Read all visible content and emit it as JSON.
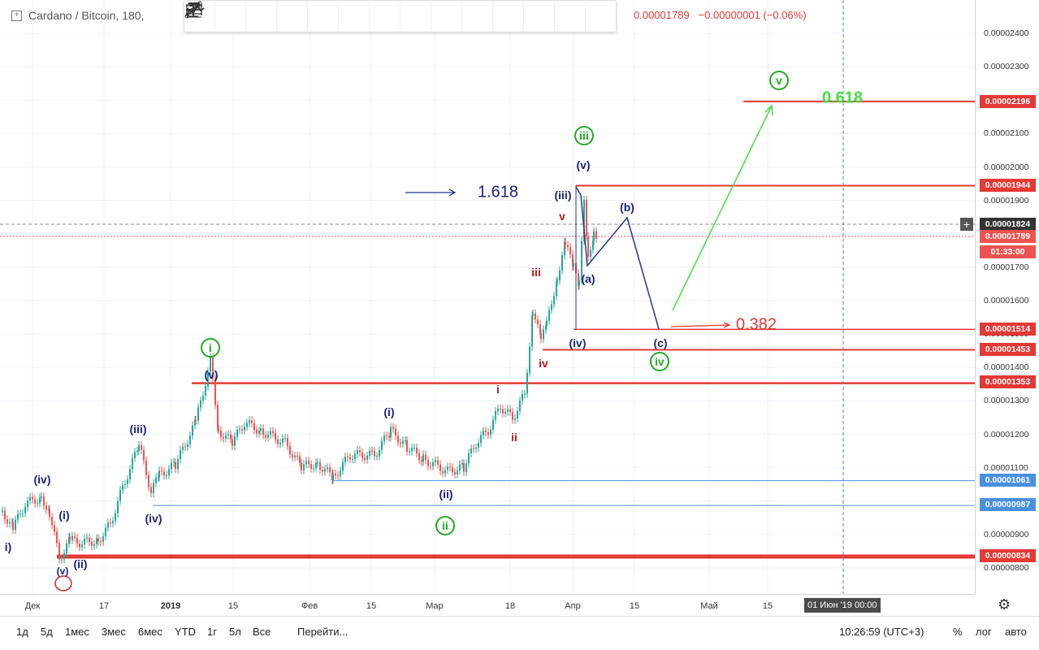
{
  "symbol": {
    "title": "Cardano / Bitcoin, 180,",
    "ohlc_close": "0.00001789",
    "change": "−0.00000001 (−0.06%)"
  },
  "toolbar": {
    "tools": [
      "crosshair-icon",
      "trend-line-icon",
      "pattern-15-icon",
      "pattern-ac-icon",
      "pattern-ae-icon",
      "pattern-wz-icon",
      "pattern-wy-icon",
      "curve-icon",
      "parallel-channel-icon",
      "price-range-icon",
      "arrow-icon",
      "date-range-icon",
      "horizontal-ray-icon",
      "text-icon"
    ],
    "pattern_labels": [
      "1 5",
      "A C",
      "A E",
      "W Z",
      "W Y"
    ]
  },
  "price_axis": {
    "ticks": [
      "0.00002400",
      "0.00002300",
      "0.00002200",
      "0.00002100",
      "0.00002000",
      "0.00001900",
      "0.00001700",
      "0.00001600",
      "0.00001500",
      "0.00001400",
      "0.00001300",
      "0.00001200",
      "0.00001100",
      "0.00000900",
      "0.00000800"
    ],
    "labels": [
      {
        "text": "0.00002196",
        "color": "#e53935"
      },
      {
        "text": "0.00001944",
        "color": "#e53935"
      },
      {
        "text": "0.00001824",
        "color": "#333333"
      },
      {
        "text": "0.00001789",
        "color": "#ef5350"
      },
      {
        "text": "01:33:00",
        "color": "#ef5350"
      },
      {
        "text": "0.00001514",
        "color": "#e53935"
      },
      {
        "text": "0.00001453",
        "color": "#e53935"
      },
      {
        "text": "0.00001353",
        "color": "#e53935"
      },
      {
        "text": "0.00001061",
        "color": "#4a90e2"
      },
      {
        "text": "0.00000987",
        "color": "#4a90e2"
      },
      {
        "text": "0.00000834",
        "color": "#e53935"
      }
    ]
  },
  "time_axis": {
    "ticks": [
      "Дек",
      "17",
      "2019",
      "15",
      "Фев",
      "15",
      "Мар",
      "18",
      "Апр",
      "15",
      "Май",
      "15"
    ],
    "cursor_label": "01 Июн '19   00:00"
  },
  "annotations": {
    "fib_1618": "1.618",
    "fib_0618": "0.618",
    "fib_0382": "0.382",
    "waves": [
      "i)",
      "(v)",
      "(i)",
      "(iv)",
      "(ii)",
      "(iii)",
      "(iv)",
      "(v)",
      "i",
      "(i)",
      "(ii)",
      "ii",
      "i",
      "ii",
      "iii",
      "iv",
      "v",
      "(iii)",
      "(v)",
      "(a)",
      "(b)",
      "(c)",
      "(iv)",
      "iii",
      "iv",
      "v"
    ]
  },
  "bottom_bar": {
    "ranges": [
      "1д",
      "5д",
      "1мес",
      "3мес",
      "6мес",
      "YTD",
      "1г",
      "5л",
      "Все"
    ],
    "goto": "Перейти...",
    "clock": "10:26:59 (UTC+3)",
    "percent": "%",
    "log": "лог",
    "auto": "авто"
  },
  "colors": {
    "red_line": "#e53935",
    "blue_line": "#4a90e2",
    "navy": "#1a237e",
    "green": "#22aa22",
    "candle_up": "#26a69a",
    "candle_down": "#ef5350"
  }
}
